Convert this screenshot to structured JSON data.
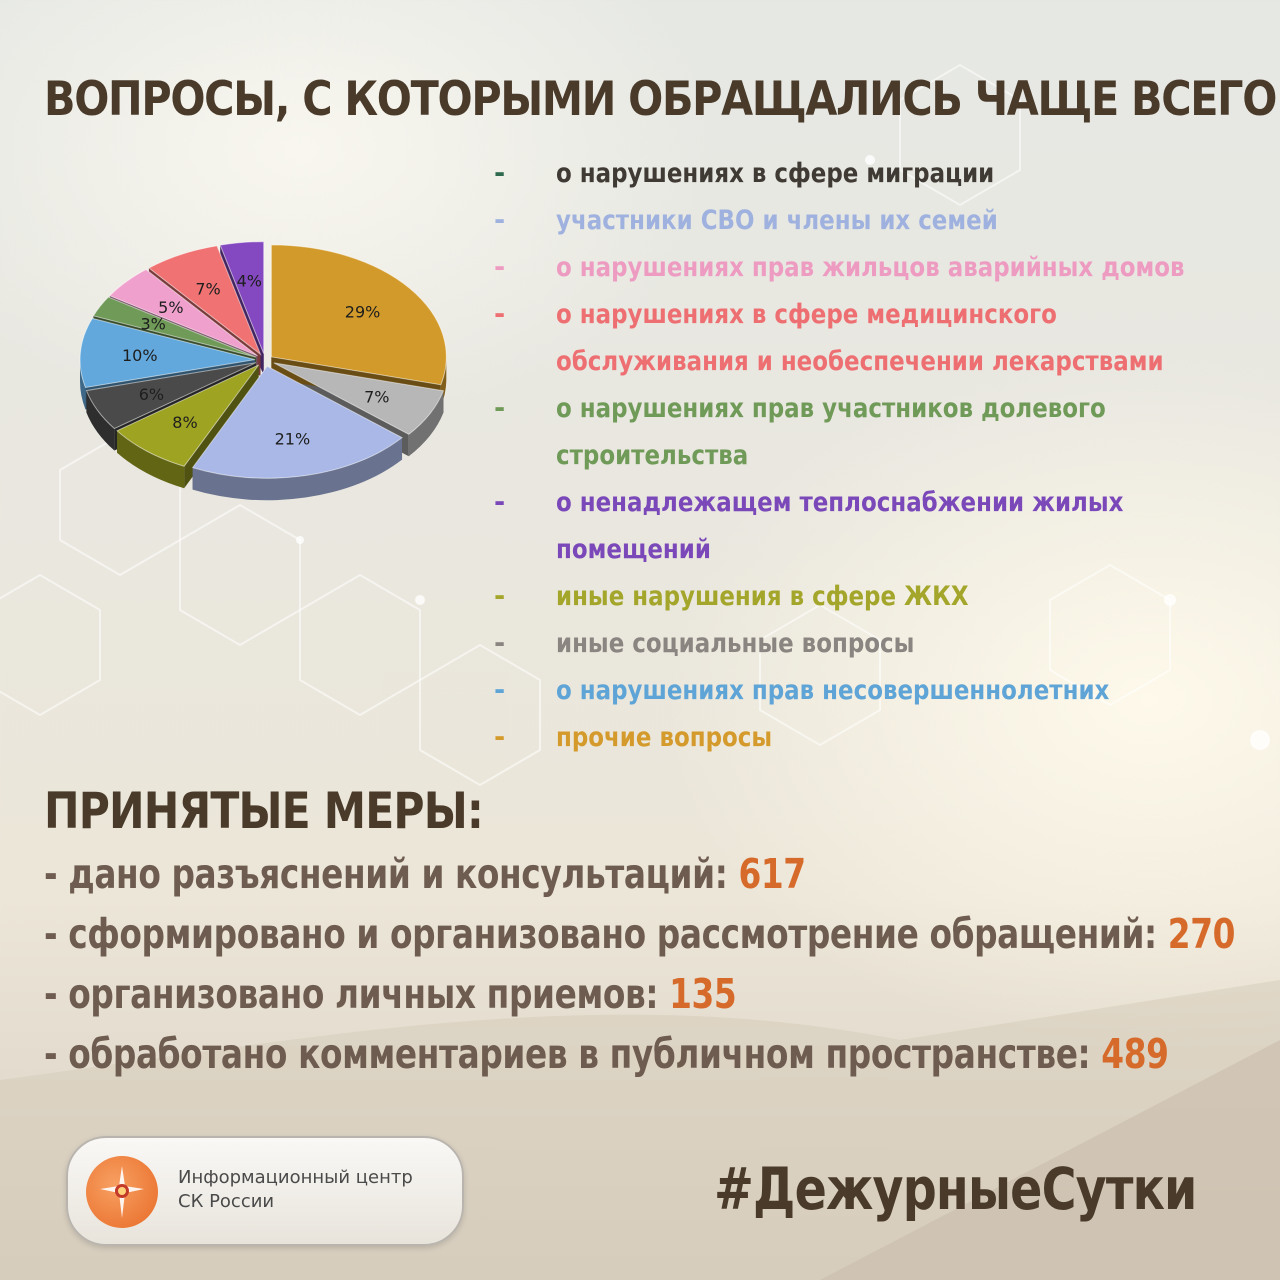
{
  "title": "ВОПРОСЫ, С КОТОРЫМИ ОБРАЩАЛИСЬ ЧАЩЕ ВСЕГО:",
  "legend": [
    {
      "dash": "-",
      "text": "о нарушениях в сфере миграции",
      "color": "#3f3a33",
      "dash_color": "#2e6b4e"
    },
    {
      "dash": "-",
      "text": "участники СВО и члены их семей",
      "color": "#9fb1de",
      "dash_color": "#9fb1de"
    },
    {
      "dash": "-",
      "text": "о нарушениях прав жильцов аварийных домов",
      "color": "#ee9bc2",
      "dash_color": "#ee9bc2"
    },
    {
      "dash": "-",
      "text": "о нарушениях в сфере медицинского",
      "color": "#ee6f72",
      "dash_color": "#ee6f72"
    },
    {
      "dash": "",
      "text": "обслуживания и необеспечении лекарствами",
      "color": "#ee6f72",
      "dash_color": "#ee6f72"
    },
    {
      "dash": "-",
      "text": "о нарушениях прав участников долевого",
      "color": "#6f9a57",
      "dash_color": "#6f9a57"
    },
    {
      "dash": "",
      "text": "строительства",
      "color": "#6f9a57",
      "dash_color": "#6f9a57"
    },
    {
      "dash": "-",
      "text": "о ненадлежащем теплоснабжении жилых",
      "color": "#7a48b8",
      "dash_color": "#7a48b8"
    },
    {
      "dash": "",
      "text": "помещений",
      "color": "#7a48b8",
      "dash_color": "#7a48b8"
    },
    {
      "dash": "-",
      "text": "иные нарушения в сфере ЖКХ",
      "color": "#a3a62a",
      "dash_color": "#a3a62a"
    },
    {
      "dash": "-",
      "text": "иные социальные вопросы",
      "color": "#8a8580",
      "dash_color": "#8a8580"
    },
    {
      "dash": "-",
      "text": "о нарушениях прав несовершеннолетних",
      "color": "#5fa4d6",
      "dash_color": "#5fa4d6"
    },
    {
      "dash": "-",
      "text": "прочие вопросы",
      "color": "#d49a2c",
      "dash_color": "#d49a2c"
    }
  ],
  "chart_data": {
    "type": "pie",
    "title": "",
    "slices": [
      {
        "label": "29%",
        "value": 29,
        "color": "#d29a2a"
      },
      {
        "label": "7%",
        "value": 7,
        "color": "#b7b7b7"
      },
      {
        "label": "21%",
        "value": 21,
        "color": "#a9b8e6"
      },
      {
        "label": "8%",
        "value": 8,
        "color": "#9ea321"
      },
      {
        "label": "6%",
        "value": 6,
        "color": "#4a4a4a"
      },
      {
        "label": "10%",
        "value": 10,
        "color": "#62a8dc"
      },
      {
        "label": "3%",
        "value": 3,
        "color": "#6f9a57"
      },
      {
        "label": "5%",
        "value": 5,
        "color": "#f0a0cc"
      },
      {
        "label": "7%",
        "value": 7,
        "color": "#f07272"
      },
      {
        "label": "4%",
        "value": 4,
        "color": "#8448c0"
      }
    ]
  },
  "measures_title": "ПРИНЯТЫЕ МЕРЫ:",
  "measures": [
    {
      "text": "- дано разъяснений и консультаций: ",
      "value": "617"
    },
    {
      "text": "- сформировано и организовано рассмотрение обращений: ",
      "value": "270"
    },
    {
      "text": "- организовано личных приемов: ",
      "value": "135"
    },
    {
      "text": "- обработано комментариев в публичном пространстве: ",
      "value": "489"
    }
  ],
  "badge": {
    "line1": "Информационный центр",
    "line2": "СК России"
  },
  "hashtag": "#ДежурныеСутки"
}
